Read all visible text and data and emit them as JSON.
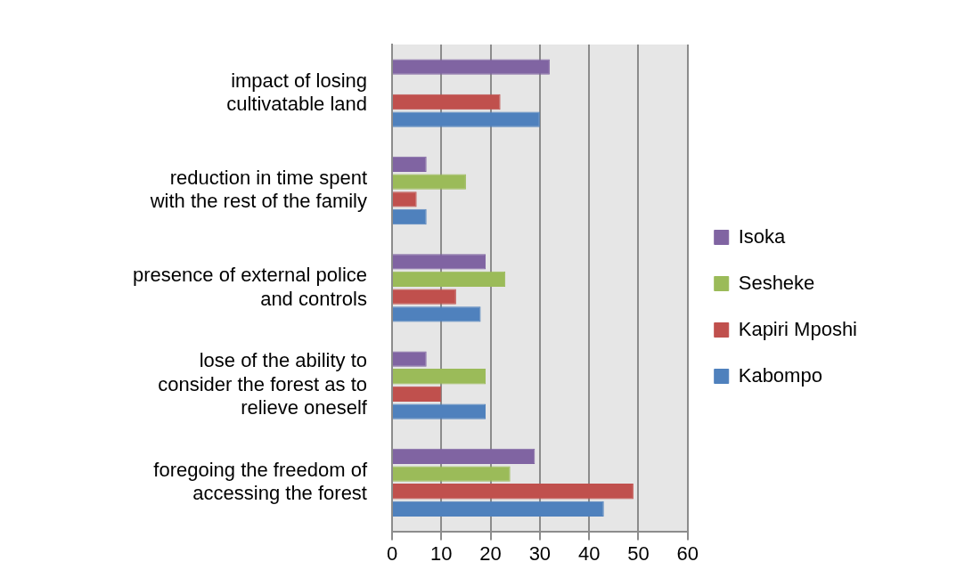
{
  "chart_data": {
    "type": "bar",
    "orientation": "horizontal",
    "categories": [
      "impact of losing cultivatable land",
      "reduction in time spent with the rest of the family",
      "presence of external police and controls",
      "lose of the ability to consider the forest as to relieve oneself",
      "foregoing the freedom of accessing the forest"
    ],
    "series": [
      {
        "name": "Isoka",
        "color": "#8064a2",
        "values": [
          32,
          7,
          19,
          7,
          29
        ]
      },
      {
        "name": "Sesheke",
        "color": "#9bbb59",
        "values": [
          0,
          15,
          23,
          19,
          24
        ]
      },
      {
        "name": "Kapiri Mposhi",
        "color": "#c0504d",
        "values": [
          22,
          5,
          13,
          10,
          49
        ]
      },
      {
        "name": "Kabompo",
        "color": "#4f81bd",
        "values": [
          30,
          7,
          18,
          19,
          43
        ]
      }
    ],
    "xlim": [
      0,
      60
    ],
    "xticks": [
      0,
      10,
      20,
      30,
      40,
      50,
      60
    ],
    "grid": "x",
    "legend": "right"
  }
}
